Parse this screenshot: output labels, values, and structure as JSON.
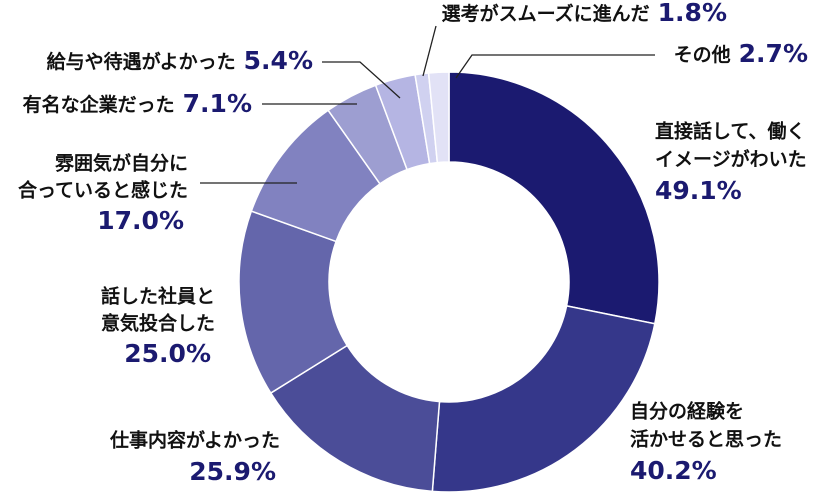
{
  "chart_data": {
    "type": "donut",
    "categories": [
      [
        "直接話して、働く",
        "イメージがわいた"
      ],
      [
        "自分の経験を",
        "活かせると思った"
      ],
      [
        "仕事内容がよかった"
      ],
      [
        "話した社員と",
        "意気投合した"
      ],
      [
        "雰囲気が自分に",
        "合っていると感じた"
      ],
      [
        "有名な企業だった"
      ],
      [
        "給与や待遇がよかった"
      ],
      [
        "選考がスムーズに進んだ"
      ],
      [
        "その他"
      ]
    ],
    "values": [
      49.1,
      40.2,
      25.9,
      25.0,
      17.0,
      7.1,
      5.4,
      1.8,
      2.7
    ],
    "value_labels": [
      "49.1%",
      "40.2%",
      "25.9%",
      "25.0%",
      "17.0%",
      "7.1%",
      "5.4%",
      "1.8%",
      "2.7%"
    ],
    "colors": [
      "#1b1a70",
      "#35378a",
      "#4b4d98",
      "#6466ab",
      "#8182c0",
      "#9d9ed1",
      "#b5b5e3",
      "#d0d1f0",
      "#e2e2f6"
    ]
  }
}
